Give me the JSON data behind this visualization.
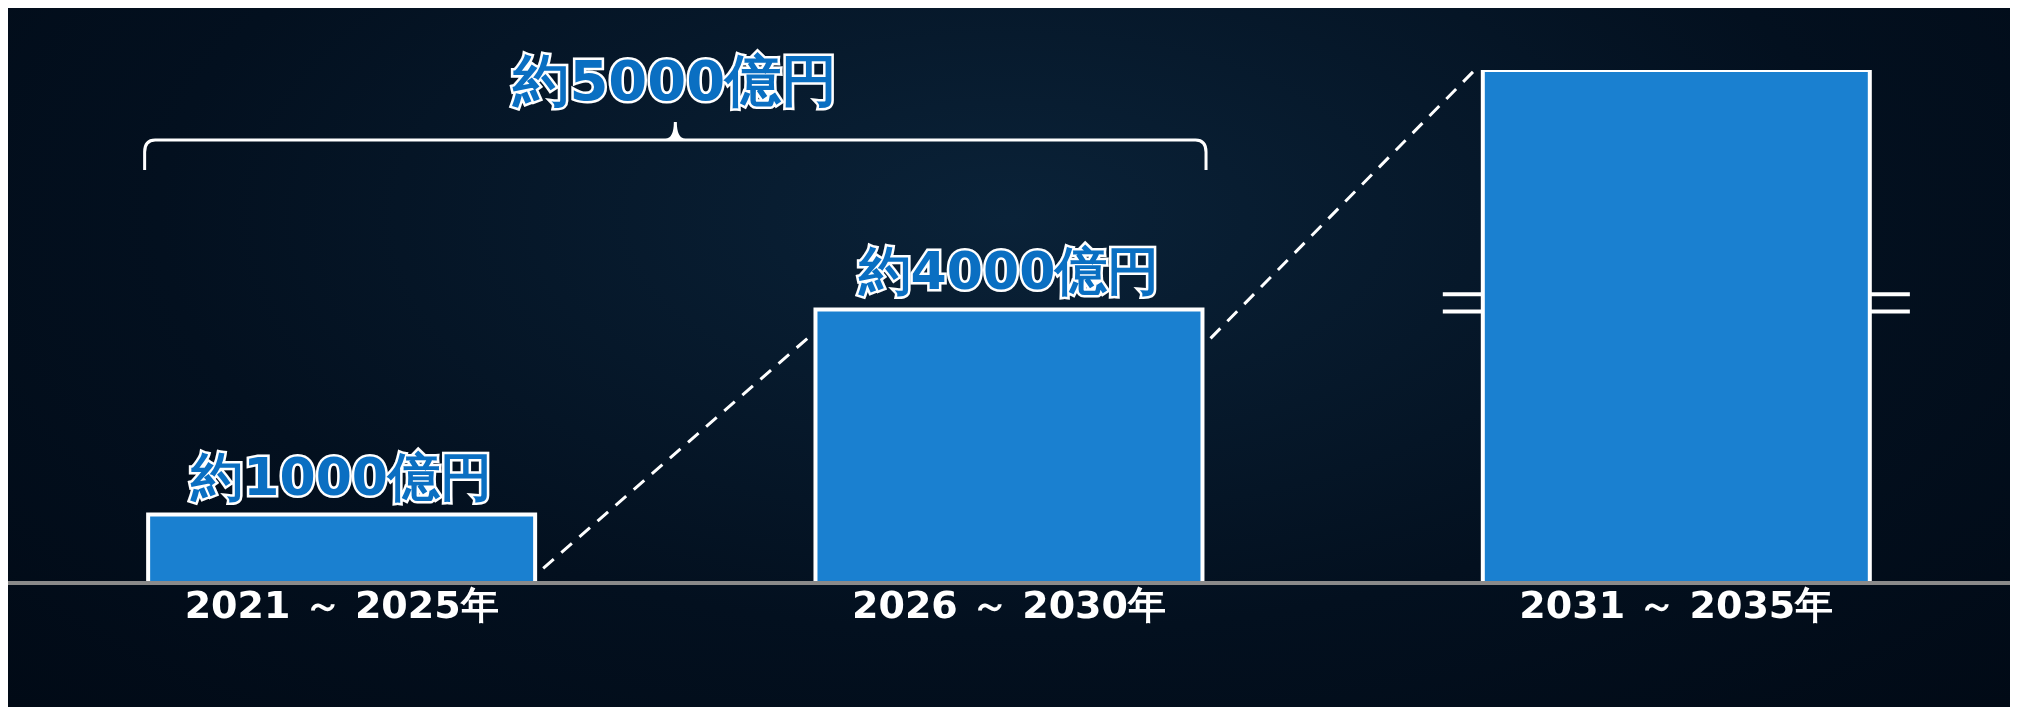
{
  "chart_data": {
    "type": "bar",
    "categories": [
      "2021 ～ 2025年",
      "2026 ～ 2030年",
      "2031 ～ 2035年"
    ],
    "values": [
      1000,
      4000,
      7500
    ],
    "value_labels": [
      "約1000億円",
      "約4000億円",
      null
    ],
    "color": "#1a80d0",
    "annotations": [
      "約5000億円"
    ],
    "grid": false,
    "legend": false
  }
}
